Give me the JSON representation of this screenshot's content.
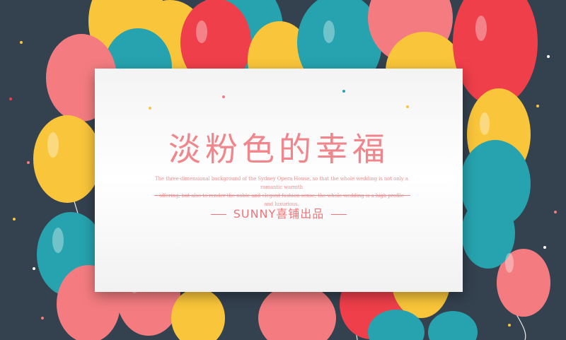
{
  "card": {
    "title": "淡粉色的幸福",
    "body_line1": "The three-dimensional background of the Sydney Opera House, so that the whole wedding is not only a romantic warmth",
    "body_line2": "offering, but also to render the noble and elegant fashion sense, the whole wedding is a high profile and luxurious.",
    "signature": "SUNNY喜铺出品"
  },
  "colors": {
    "background": "#34414f",
    "red": "#ef3f4a",
    "pink": "#f47c80",
    "yellow": "#f9c53a",
    "teal": "#26a3ae",
    "text_pink": "#f0868b"
  },
  "icons": [
    "balloon-icon",
    "confetti-dot"
  ]
}
